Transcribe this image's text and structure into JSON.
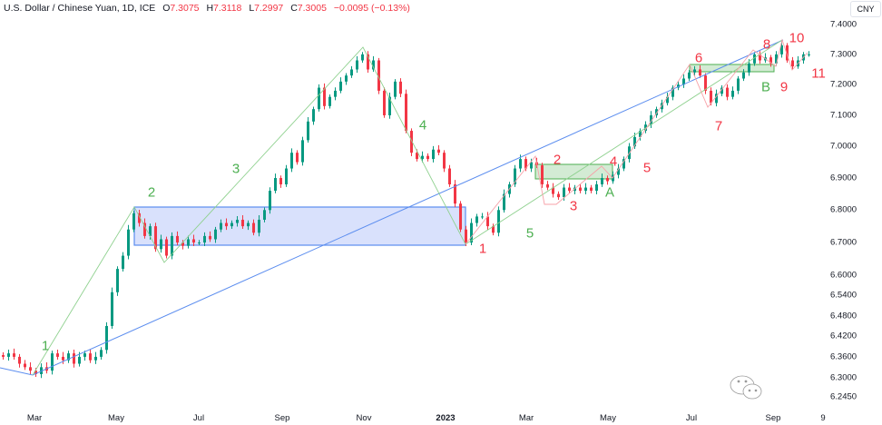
{
  "header": {
    "symbol": "U.S. Dollar / Chinese Yuan, 1D, ICE",
    "o_label": "O",
    "o": "7.3075",
    "h_label": "H",
    "h": "7.3118",
    "l_label": "L",
    "l": "7.2997",
    "c_label": "C",
    "c": "7.3005",
    "change": "−0.0095 (−0.13%)"
  },
  "currency_button": "CNY",
  "watermark_text": "缠见如故",
  "colors": {
    "up": "#089981",
    "down": "#f23645",
    "green_wave": "#4caf50",
    "red_wave": "#f23645",
    "trend": "#5b8def",
    "box_fill": "#d2dcfb"
  },
  "chart_data": {
    "type": "candlestick",
    "title": "U.S. Dollar / Chinese Yuan, 1D, ICE",
    "y_scale": "log",
    "ylim": [
      6.245,
      7.4
    ],
    "y_ticks": [
      "7.4000",
      "7.3000",
      "7.2000",
      "7.1000",
      "7.0000",
      "6.9000",
      "6.8000",
      "6.7000",
      "6.6000",
      "6.5400",
      "6.4800",
      "6.4200",
      "6.3600",
      "6.3000",
      "6.2450"
    ],
    "x_ticks": [
      "Mar",
      "May",
      "Jul",
      "Sep",
      "Nov",
      "2023",
      "Mar",
      "May",
      "Jul",
      "Sep",
      "9"
    ],
    "closes": [
      6.36,
      6.37,
      6.36,
      6.34,
      6.33,
      6.32,
      6.31,
      6.33,
      6.32,
      6.37,
      6.36,
      6.35,
      6.37,
      6.34,
      6.36,
      6.37,
      6.35,
      6.36,
      6.38,
      6.45,
      6.55,
      6.62,
      6.66,
      6.74,
      6.79,
      6.76,
      6.72,
      6.75,
      6.68,
      6.71,
      6.66,
      6.72,
      6.7,
      6.69,
      6.71,
      6.7,
      6.7,
      6.72,
      6.71,
      6.74,
      6.76,
      6.75,
      6.76,
      6.77,
      6.75,
      6.76,
      6.73,
      6.77,
      6.8,
      6.86,
      6.9,
      6.88,
      6.93,
      6.98,
      6.95,
      7.02,
      7.08,
      7.12,
      7.19,
      7.13,
      7.16,
      7.18,
      7.21,
      7.23,
      7.25,
      7.28,
      7.3,
      7.25,
      7.28,
      7.18,
      7.1,
      7.16,
      7.21,
      7.17,
      7.05,
      6.98,
      6.96,
      6.97,
      6.96,
      6.99,
      6.98,
      6.93,
      6.88,
      6.82,
      6.74,
      6.7,
      6.76,
      6.78,
      6.78,
      6.75,
      6.73,
      6.8,
      6.85,
      6.88,
      6.93,
      6.96,
      6.93,
      6.95,
      6.94,
      6.88,
      6.87,
      6.85,
      6.84,
      6.87,
      6.86,
      6.87,
      6.86,
      6.87,
      6.86,
      6.88,
      6.9,
      6.89,
      6.91,
      6.93,
      6.96,
      7.0,
      7.03,
      7.05,
      7.07,
      7.1,
      7.12,
      7.14,
      7.16,
      7.19,
      7.2,
      7.22,
      7.24,
      7.25,
      7.23,
      7.18,
      7.14,
      7.17,
      7.19,
      7.16,
      7.18,
      7.22,
      7.24,
      7.27,
      7.3,
      7.28,
      7.29,
      7.27,
      7.3,
      7.33,
      7.28,
      7.26,
      7.28,
      7.3,
      7.3
    ],
    "green_wave_labels": [
      "1",
      "2",
      "3",
      "4",
      "5",
      "A",
      "B"
    ],
    "red_wave_labels": [
      "1",
      "2",
      "3",
      "4",
      "5",
      "6",
      "7",
      "8",
      "9",
      "10",
      "11"
    ]
  }
}
